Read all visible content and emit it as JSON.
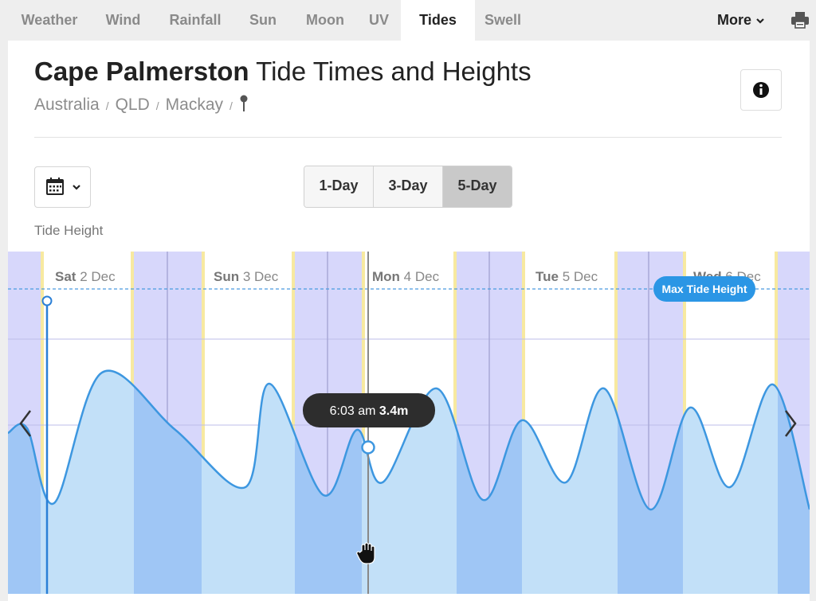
{
  "tabs": [
    {
      "label": "Weather",
      "active": false
    },
    {
      "label": "Wind",
      "active": false
    },
    {
      "label": "Rainfall",
      "active": false
    },
    {
      "label": "Sun",
      "active": false
    },
    {
      "label": "Moon",
      "active": false
    },
    {
      "label": "UV",
      "active": false
    },
    {
      "label": "Tides",
      "active": true
    },
    {
      "label": "Swell",
      "active": false
    }
  ],
  "more_label": "More",
  "page": {
    "title_bold": "Cape Palmerston",
    "title_rest": " Tide Times and Heights",
    "breadcrumb": [
      "Australia",
      "QLD",
      "Mackay"
    ]
  },
  "controls": {
    "range_options": [
      "1-Day",
      "3-Day",
      "5-Day"
    ],
    "selected_range": "5-Day"
  },
  "chart_label": "Tide Height",
  "chart": {
    "days": [
      {
        "bold": "Sat",
        "rest": " 2 Dec"
      },
      {
        "bold": "Sun",
        "rest": " 3 Dec"
      },
      {
        "bold": "Mon",
        "rest": " 4 Dec"
      },
      {
        "bold": "Tue",
        "rest": " 5 Dec"
      },
      {
        "bold": "Wed",
        "rest": " 6 Dec"
      }
    ],
    "max_label": "Max Tide Height",
    "tooltip": {
      "time": "6:03 am",
      "height": "3.4m"
    },
    "colors": {
      "night": "#d7d7fb",
      "line": "#3d97e0",
      "fill_day": "#c2e0f8",
      "fill_night": "#9fc6f5",
      "dawn": "#f7e9a0"
    }
  }
}
